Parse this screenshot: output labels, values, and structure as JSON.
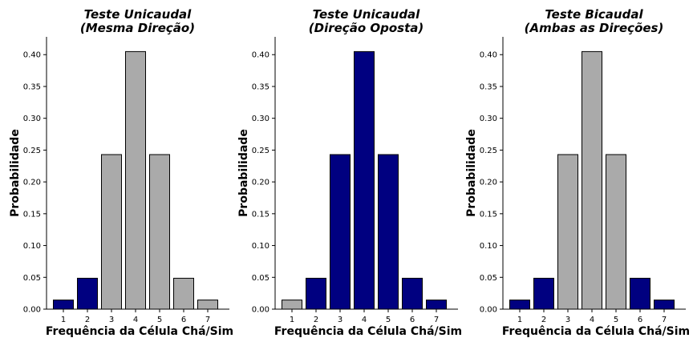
{
  "chart_data": [
    {
      "type": "bar",
      "title": [
        "Teste Unicaudal",
        "(Mesma Direção)"
      ],
      "xlabel": "Frequência da Célula Chá/Sim",
      "ylabel": "Probabilidade",
      "categories": [
        "1",
        "2",
        "3",
        "4",
        "5",
        "6",
        "7"
      ],
      "values": [
        0.0143,
        0.0486,
        0.2429,
        0.4048,
        0.2429,
        0.0486,
        0.0143
      ],
      "bar_colors": [
        "#000080",
        "#000080",
        "#aaaaaa",
        "#aaaaaa",
        "#aaaaaa",
        "#aaaaaa",
        "#aaaaaa"
      ],
      "yticks": [
        "0.00",
        "0.05",
        "0.10",
        "0.15",
        "0.20",
        "0.25",
        "0.30",
        "0.35",
        "0.40"
      ],
      "ylim": [
        0,
        0.428
      ]
    },
    {
      "type": "bar",
      "title": [
        "Teste Unicaudal",
        "(Direção Oposta)"
      ],
      "xlabel": "Frequência da Célula Chá/Sim",
      "ylabel": "Probabilidade",
      "categories": [
        "1",
        "2",
        "3",
        "4",
        "5",
        "6",
        "7"
      ],
      "values": [
        0.0143,
        0.0486,
        0.2429,
        0.4048,
        0.2429,
        0.0486,
        0.0143
      ],
      "bar_colors": [
        "#aaaaaa",
        "#000080",
        "#000080",
        "#000080",
        "#000080",
        "#000080",
        "#000080"
      ],
      "yticks": [
        "0.00",
        "0.05",
        "0.10",
        "0.15",
        "0.20",
        "0.25",
        "0.30",
        "0.35",
        "0.40"
      ],
      "ylim": [
        0,
        0.428
      ]
    },
    {
      "type": "bar",
      "title": [
        "Teste Bicaudal",
        "(Ambas as Direções)"
      ],
      "xlabel": "Frequência da Célula Chá/Sim",
      "ylabel": "Probabilidade",
      "categories": [
        "1",
        "2",
        "3",
        "4",
        "5",
        "6",
        "7"
      ],
      "values": [
        0.0143,
        0.0486,
        0.2429,
        0.4048,
        0.2429,
        0.0486,
        0.0143
      ],
      "bar_colors": [
        "#000080",
        "#000080",
        "#aaaaaa",
        "#aaaaaa",
        "#aaaaaa",
        "#000080",
        "#000080"
      ],
      "yticks": [
        "0.00",
        "0.05",
        "0.10",
        "0.15",
        "0.20",
        "0.25",
        "0.30",
        "0.35",
        "0.40"
      ],
      "ylim": [
        0,
        0.428
      ]
    }
  ]
}
